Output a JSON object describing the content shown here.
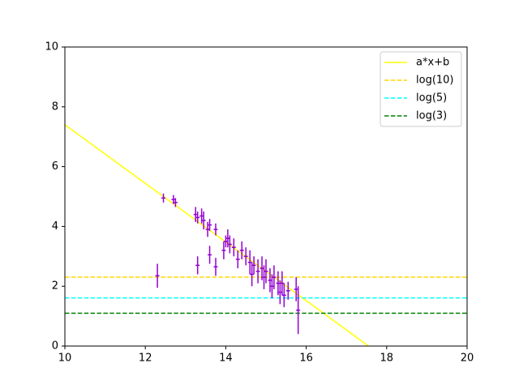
{
  "chart_data": {
    "type": "errorbar",
    "xlim": [
      10,
      20
    ],
    "ylim": [
      0,
      10
    ],
    "xticks": [
      10,
      12,
      14,
      16,
      18,
      20
    ],
    "yticks": [
      0,
      2,
      4,
      6,
      8,
      10
    ],
    "legend": "upper right",
    "series": [
      {
        "name": "a*x+b",
        "color": "#ffff00",
        "dashed": false,
        "x": [
          10,
          17.55
        ],
        "values": [
          7.4,
          0
        ]
      },
      {
        "name": "log(10)",
        "color": "#ffd700",
        "dashed": true,
        "x": [
          10,
          20
        ],
        "values": [
          2.303,
          2.303
        ]
      },
      {
        "name": "log(5)",
        "color": "#00ffff",
        "dashed": true,
        "x": [
          10,
          20
        ],
        "values": [
          1.609,
          1.609
        ]
      },
      {
        "name": "log(3)",
        "color": "#008000",
        "dashed": true,
        "x": [
          10,
          20
        ],
        "values": [
          1.099,
          1.099
        ]
      }
    ],
    "errorbars": {
      "color": "#9400d3",
      "x": [
        12.3,
        12.45,
        12.7,
        12.75,
        13.25,
        13.3,
        13.3,
        13.4,
        13.45,
        13.55,
        13.6,
        13.6,
        13.75,
        13.75,
        13.95,
        14.0,
        14.05,
        14.1,
        14.2,
        14.3,
        14.4,
        14.5,
        14.6,
        14.65,
        14.7,
        14.8,
        14.9,
        14.95,
        15.0,
        15.1,
        15.15,
        15.2,
        15.3,
        15.35,
        15.4,
        15.45,
        15.55,
        15.75,
        15.8
      ],
      "values": [
        2.35,
        4.95,
        4.9,
        4.8,
        4.4,
        4.3,
        2.7,
        4.35,
        4.2,
        3.9,
        4.05,
        3.05,
        3.9,
        2.65,
        3.2,
        3.5,
        3.6,
        3.4,
        3.3,
        2.9,
        3.2,
        3.0,
        2.8,
        2.4,
        2.7,
        2.5,
        2.6,
        2.3,
        2.5,
        2.2,
        2.0,
        2.3,
        2.1,
        1.8,
        2.1,
        1.7,
        1.85,
        1.9,
        1.2
      ],
      "yerr": [
        0.4,
        0.15,
        0.15,
        0.15,
        0.25,
        0.2,
        0.3,
        0.25,
        0.3,
        0.25,
        0.2,
        0.3,
        0.2,
        0.3,
        0.3,
        0.2,
        0.3,
        0.3,
        0.3,
        0.3,
        0.3,
        0.3,
        0.4,
        0.4,
        0.3,
        0.4,
        0.4,
        0.4,
        0.4,
        0.4,
        0.4,
        0.4,
        0.4,
        0.4,
        0.4,
        0.4,
        0.3,
        0.4,
        0.8
      ],
      "xerr": [
        0.05,
        0.05,
        0.05,
        0.05,
        0.05,
        0.05,
        0.05,
        0.05,
        0.05,
        0.05,
        0.05,
        0.05,
        0.05,
        0.05,
        0.05,
        0.05,
        0.05,
        0.05,
        0.05,
        0.05,
        0.05,
        0.05,
        0.05,
        0.05,
        0.05,
        0.05,
        0.05,
        0.05,
        0.05,
        0.05,
        0.05,
        0.05,
        0.05,
        0.05,
        0.05,
        0.05,
        0.05,
        0.05,
        0.05
      ]
    }
  }
}
